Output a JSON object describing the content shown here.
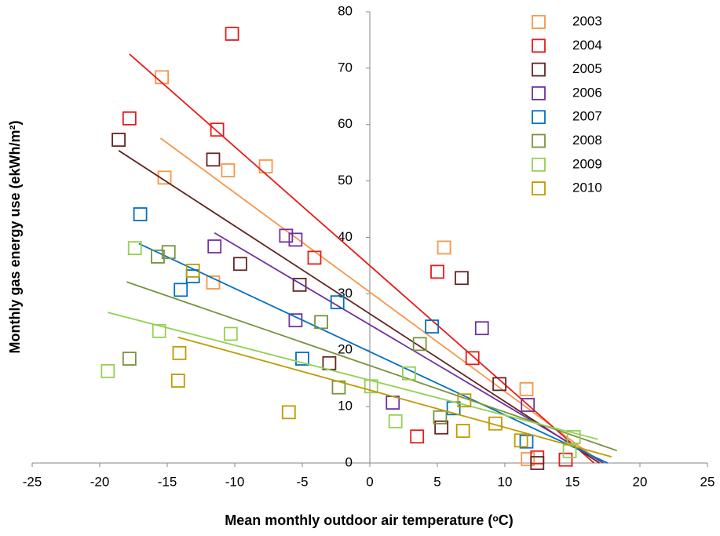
{
  "chart_data": {
    "type": "scatter",
    "x_label": "Mean monthly outdoor air temperature (ᵒC)",
    "y_label": "Monthly gas energy use (ekWh/m²)",
    "xlim": [
      -25,
      25
    ],
    "xticks": [
      -25,
      -20,
      -15,
      -10,
      -5,
      0,
      5,
      10,
      15,
      20,
      25
    ],
    "ylim": [
      0,
      80
    ],
    "yticks": [
      0,
      10,
      20,
      30,
      40,
      50,
      60,
      70,
      80
    ],
    "legend": "top-right",
    "series": [
      {
        "name": "2003",
        "color": "#f79646",
        "x": [
          -15.4,
          -15.2,
          -10.5,
          -7.7,
          -11.6,
          5.5,
          11.6,
          11.7
        ],
        "values": [
          68.4,
          50.6,
          51.9,
          52.6,
          32,
          38.2,
          13.1,
          0.7
        ],
        "trendline": {
          "x": [
            -15.5,
            17.2
          ],
          "y": [
            57.6,
            0
          ]
        }
      },
      {
        "name": "2004",
        "color": "#e81a1a",
        "x": [
          -10.2,
          -17.8,
          -11.3,
          -4.1,
          5,
          3.5,
          7.6,
          12.4,
          14.5
        ],
        "values": [
          76.1,
          61.1,
          59.1,
          36.4,
          33.9,
          4.7,
          18.6,
          1,
          0.6
        ],
        "trendline": {
          "x": [
            -17.8,
            16.6
          ],
          "y": [
            72.5,
            0
          ]
        }
      },
      {
        "name": "2005",
        "color": "#632523",
        "x": [
          -18.6,
          -11.6,
          -9.6,
          -5.2,
          -3,
          6.8,
          9.6,
          5.3,
          12.4
        ],
        "values": [
          57.3,
          53.8,
          35.3,
          31.6,
          17.7,
          32.8,
          14,
          6.3,
          0
        ],
        "trendline": {
          "x": [
            -18.6,
            17
          ],
          "y": [
            55.4,
            0
          ]
        }
      },
      {
        "name": "2006",
        "color": "#7030a0",
        "x": [
          -6.2,
          -5.5,
          -11.5,
          -5.5,
          8.3,
          1.7,
          11.7
        ],
        "values": [
          40.3,
          39.6,
          38.4,
          25.3,
          23.9,
          10.7,
          10.3
        ],
        "trendline": {
          "x": [
            -11.5,
            17.3
          ],
          "y": [
            40.8,
            0
          ]
        }
      },
      {
        "name": "2007",
        "color": "#0070c0",
        "x": [
          -17,
          -13.1,
          -14,
          -2.4,
          -5,
          4.6,
          6.2,
          11.6
        ],
        "values": [
          44.1,
          33.1,
          30.7,
          28.5,
          18.5,
          24.2,
          9.7,
          3.8
        ],
        "trendline": {
          "x": [
            -17.1,
            17.6
          ],
          "y": [
            38.9,
            0
          ]
        }
      },
      {
        "name": "2008",
        "color": "#77933c",
        "x": [
          -14.9,
          -15.7,
          -17.8,
          -3.6,
          -2.3,
          3.7,
          5.2
        ],
        "values": [
          37.4,
          36.6,
          18.5,
          25,
          13.4,
          21.1,
          8.1
        ],
        "trendline": {
          "x": [
            -18,
            18.3
          ],
          "y": [
            32.1,
            2.2
          ]
        }
      },
      {
        "name": "2009",
        "color": "#92d050",
        "x": [
          -17.4,
          -19.4,
          -15.6,
          -10.3,
          0.1,
          1.9,
          2.9,
          14.8,
          15.1
        ],
        "values": [
          38.1,
          16.3,
          23.4,
          22.9,
          13.6,
          7.4,
          15.9,
          2.1,
          4.6
        ],
        "trendline": {
          "x": [
            -19.4,
            16.9
          ],
          "y": [
            26.7,
            4.2
          ]
        }
      },
      {
        "name": "2010",
        "color": "#c09a00",
        "x": [
          -13.1,
          -14.1,
          -14.2,
          -6,
          6.9,
          9.3,
          7,
          11.2
        ],
        "values": [
          34.1,
          19.5,
          14.6,
          9,
          5.7,
          7,
          11.1,
          4
        ],
        "trendline": {
          "x": [
            -14.2,
            17.9
          ],
          "y": [
            22.3,
            1.1
          ]
        }
      }
    ]
  }
}
